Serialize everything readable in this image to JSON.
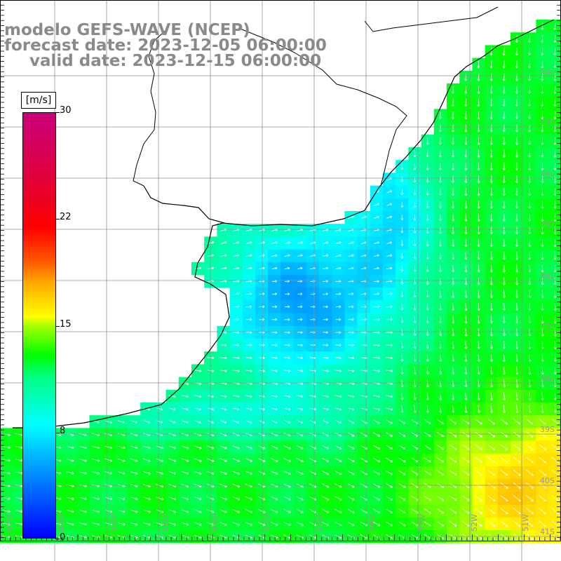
{
  "title": {
    "model": "modelo GEFS-WAVE (NCEP)",
    "forecast": "forecast date: 2023-12-05 06:00:00",
    "valid": "valid date: 2023-12-15 06:00:00"
  },
  "colorbar": {
    "units": "[m/s]",
    "ticks": [
      "30",
      "22",
      "15",
      "8",
      "0"
    ],
    "tick_values": [
      30,
      22,
      15,
      8,
      0
    ],
    "min": 0,
    "max": 30
  },
  "map": {
    "lon_labels": [
      "61W",
      "60W",
      "59W",
      "58W",
      "57W",
      "56W",
      "55W",
      "54W",
      "53W",
      "52W",
      "51W"
    ],
    "lat_labels": [
      "32S",
      "33S",
      "34S",
      "35S",
      "36S",
      "37S",
      "38S",
      "39S",
      "40S",
      "41S"
    ],
    "land_color": "#ffffff",
    "coast_color": "#000000",
    "grid_color": "#909090",
    "arrow_color": "#ffffff"
  }
}
